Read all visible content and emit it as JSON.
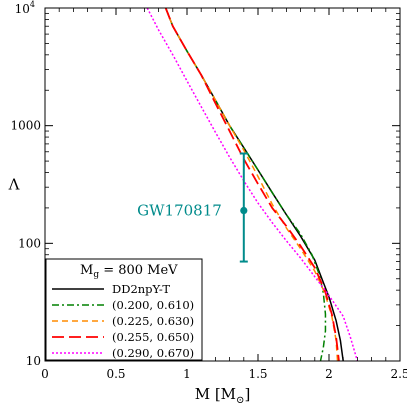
{
  "chart_data": {
    "type": "line",
    "xlabel_main": "M [M",
    "xlabel_sub": "⊙",
    "xlabel_close": "]",
    "ylabel": "Λ",
    "xlim": [
      0,
      2.5
    ],
    "ylim": [
      10,
      10000
    ],
    "yscale": "log",
    "xticks": [
      {
        "value": 0,
        "label": "0"
      },
      {
        "value": 0.5,
        "label": "0.5"
      },
      {
        "value": 1,
        "label": "1"
      },
      {
        "value": 1.5,
        "label": "1.5"
      },
      {
        "value": 2,
        "label": "2"
      },
      {
        "value": 2.5,
        "label": "2.5"
      }
    ],
    "yticks": [
      {
        "value": 10,
        "label": "10"
      },
      {
        "value": 100,
        "label": "100"
      },
      {
        "value": 1000,
        "label": "1000"
      }
    ],
    "ytick_top": {
      "value": 10000,
      "base": "10",
      "exp": "4"
    },
    "legend": {
      "title_main": "M",
      "title_sub": "g",
      "title_rest": " = 800 MeV",
      "position": "bottom-left"
    },
    "series": [
      {
        "name": "DD2npY-T",
        "color": "#000000",
        "dash": "",
        "width": 1.5,
        "points": [
          [
            0.85,
            10000
          ],
          [
            0.9,
            7000
          ],
          [
            1.0,
            4300
          ],
          [
            1.1,
            2700
          ],
          [
            1.2,
            1650
          ],
          [
            1.3,
            1000
          ],
          [
            1.4,
            650
          ],
          [
            1.5,
            420
          ],
          [
            1.6,
            270
          ],
          [
            1.7,
            175
          ],
          [
            1.8,
            115
          ],
          [
            1.9,
            72
          ],
          [
            1.95,
            50
          ],
          [
            2.0,
            35
          ],
          [
            2.05,
            22
          ],
          [
            2.08,
            15
          ],
          [
            2.1,
            10
          ]
        ]
      },
      {
        "name": "(0.200, 0.610)",
        "color": "#008000",
        "dash": "7,3,2,3",
        "width": 1.5,
        "points": [
          [
            0.85,
            10000
          ],
          [
            0.9,
            7000
          ],
          [
            1.0,
            4300
          ],
          [
            1.1,
            2700
          ],
          [
            1.2,
            1650
          ],
          [
            1.3,
            1000
          ],
          [
            1.4,
            650
          ],
          [
            1.5,
            420
          ],
          [
            1.6,
            270
          ],
          [
            1.7,
            175
          ],
          [
            1.8,
            120
          ],
          [
            1.88,
            80
          ],
          [
            1.93,
            55
          ],
          [
            1.96,
            38
          ],
          [
            1.975,
            25
          ],
          [
            1.975,
            18
          ],
          [
            1.96,
            13
          ],
          [
            1.94,
            10
          ]
        ]
      },
      {
        "name": "(0.225, 0.630)",
        "color": "#ff8c00",
        "dash": "6,4",
        "width": 1.5,
        "points": [
          [
            0.85,
            10000
          ],
          [
            0.9,
            7000
          ],
          [
            1.0,
            4300
          ],
          [
            1.1,
            2700
          ],
          [
            1.2,
            1650
          ],
          [
            1.3,
            1000
          ],
          [
            1.4,
            620
          ],
          [
            1.5,
            370
          ],
          [
            1.6,
            215
          ],
          [
            1.7,
            135
          ],
          [
            1.8,
            90
          ],
          [
            1.9,
            58
          ],
          [
            1.97,
            38
          ],
          [
            2.02,
            24
          ],
          [
            2.05,
            15
          ],
          [
            2.06,
            10
          ]
        ]
      },
      {
        "name": "(0.255, 0.650)",
        "color": "#ff0000",
        "dash": "12,5",
        "width": 1.8,
        "points": [
          [
            0.85,
            10000
          ],
          [
            0.9,
            7000
          ],
          [
            1.0,
            4300
          ],
          [
            1.1,
            2700
          ],
          [
            1.2,
            1550
          ],
          [
            1.3,
            900
          ],
          [
            1.4,
            520
          ],
          [
            1.5,
            320
          ],
          [
            1.6,
            200
          ],
          [
            1.7,
            140
          ],
          [
            1.8,
            95
          ],
          [
            1.9,
            62
          ],
          [
            1.97,
            40
          ],
          [
            2.02,
            25
          ],
          [
            2.05,
            16
          ],
          [
            2.07,
            10
          ]
        ]
      },
      {
        "name": "(0.290, 0.670)",
        "color": "#ff00ff",
        "dash": "2,2",
        "width": 1.5,
        "points": [
          [
            0.72,
            10000
          ],
          [
            0.8,
            6500
          ],
          [
            0.9,
            4000
          ],
          [
            1.0,
            2400
          ],
          [
            1.1,
            1450
          ],
          [
            1.2,
            880
          ],
          [
            1.3,
            540
          ],
          [
            1.4,
            340
          ],
          [
            1.5,
            220
          ],
          [
            1.6,
            150
          ],
          [
            1.7,
            105
          ],
          [
            1.8,
            75
          ],
          [
            1.9,
            52
          ],
          [
            2.0,
            36
          ],
          [
            2.1,
            24
          ],
          [
            2.15,
            16
          ],
          [
            2.2,
            10
          ]
        ]
      }
    ],
    "annotation": {
      "text": "GW170817",
      "color": "#008b8b",
      "point": {
        "x": 1.4,
        "y": 190
      },
      "error_low": 70,
      "error_high": 580
    }
  }
}
